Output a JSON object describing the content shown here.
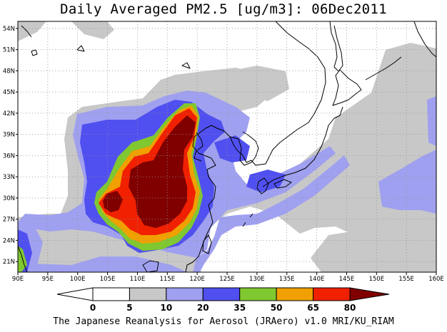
{
  "title": "Daily Averaged PM2.5 [ug/m3]: 06Dec2011",
  "credit": "The Japanese Reanalysis for Aerosol (JRAero) v1.0 MRI/KU_RIAM",
  "map": {
    "lon_range": [
      90,
      160
    ],
    "lat_range": [
      19.5,
      55
    ],
    "lat_ticks": [
      "54N",
      "51N",
      "48N",
      "45N",
      "42N",
      "39N",
      "36N",
      "33N",
      "30N",
      "27N",
      "24N",
      "21N"
    ],
    "lat_values": [
      54,
      51,
      48,
      45,
      42,
      39,
      36,
      33,
      30,
      27,
      24,
      21
    ],
    "lon_ticks": [
      "90E",
      "95E",
      "100E",
      "105E",
      "110E",
      "115E",
      "120E",
      "125E",
      "130E",
      "135E",
      "140E",
      "145E",
      "150E",
      "155E",
      "160E"
    ],
    "lon_values": [
      90,
      95,
      100,
      105,
      110,
      115,
      120,
      125,
      130,
      135,
      140,
      145,
      150,
      155,
      160
    ],
    "grid": "dotted"
  },
  "colorbar": {
    "labels": [
      "0",
      "5",
      "10",
      "20",
      "35",
      "50",
      "65",
      "80"
    ],
    "colors": [
      "#ffffff",
      "#ffffff",
      "#c8c8c8",
      "#a0a0f0",
      "#5050f0",
      "#80c830",
      "#f0a000",
      "#f02000",
      "#800000"
    ]
  }
}
